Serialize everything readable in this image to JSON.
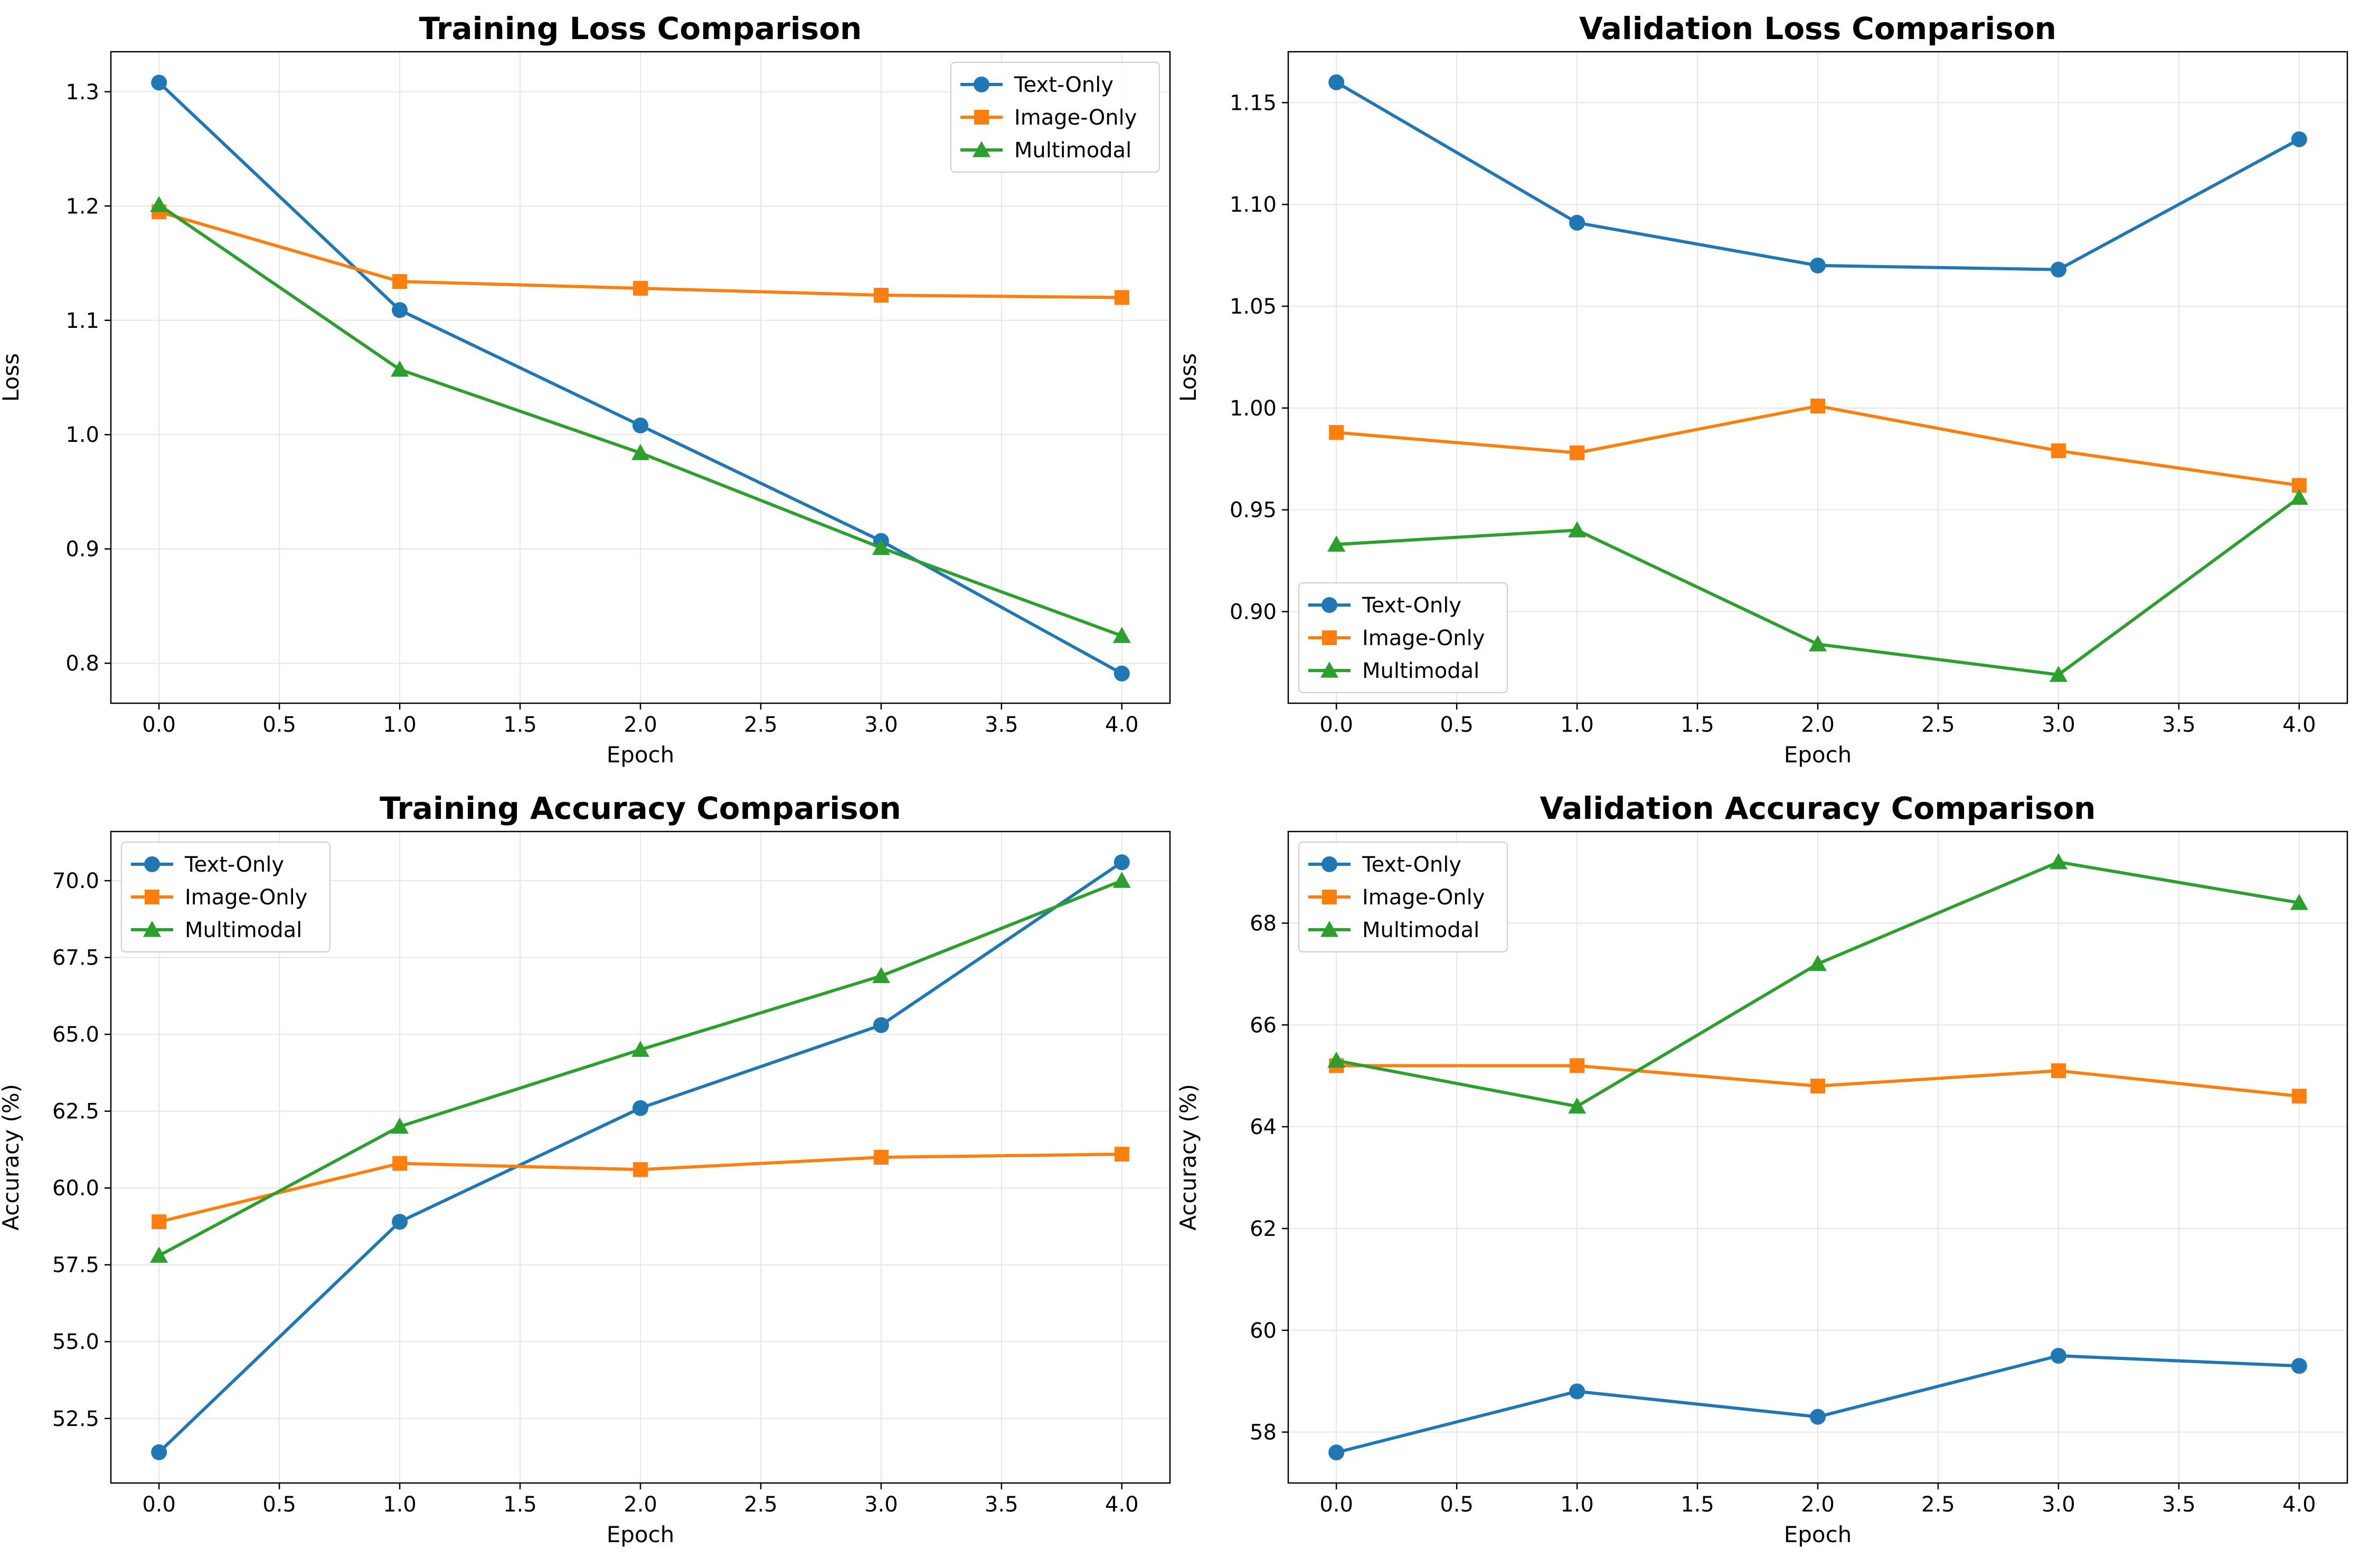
{
  "colors": {
    "text_only": "#1f77b4",
    "image_only": "#ff7f0e",
    "multimodal": "#2ca02c",
    "grid": "#e6e6e6",
    "axes": "#000000"
  },
  "chart_data": [
    {
      "type": "line",
      "title": "Training Loss Comparison",
      "xlabel": "Epoch",
      "ylabel": "Loss",
      "x": [
        0,
        1,
        2,
        3,
        4
      ],
      "xlim": [
        -0.2,
        4.2
      ],
      "ylim": [
        0.765,
        1.335
      ],
      "xticks": [
        0,
        0.5,
        1,
        1.5,
        2,
        2.5,
        3,
        3.5,
        4
      ],
      "xtick_labels": [
        "0.0",
        "0.5",
        "1.0",
        "1.5",
        "2.0",
        "2.5",
        "3.0",
        "3.5",
        "4.0"
      ],
      "yticks": [
        0.8,
        0.9,
        1.0,
        1.1,
        1.2,
        1.3
      ],
      "ytick_labels": [
        "0.8",
        "0.9",
        "1.0",
        "1.1",
        "1.2",
        "1.3"
      ],
      "grid": true,
      "legend_loc": "upper right",
      "series": [
        {
          "name": "Text-Only",
          "marker": "circle",
          "values": [
            1.308,
            1.109,
            1.008,
            0.907,
            0.791
          ]
        },
        {
          "name": "Image-Only",
          "marker": "square",
          "values": [
            1.195,
            1.134,
            1.128,
            1.122,
            1.12
          ]
        },
        {
          "name": "Multimodal",
          "marker": "triangle",
          "values": [
            1.201,
            1.057,
            0.984,
            0.901,
            0.824
          ]
        }
      ]
    },
    {
      "type": "line",
      "title": "Validation Loss Comparison",
      "xlabel": "Epoch",
      "ylabel": "Loss",
      "x": [
        0,
        1,
        2,
        3,
        4
      ],
      "xlim": [
        -0.2,
        4.2
      ],
      "ylim": [
        0.855,
        1.175
      ],
      "xticks": [
        0,
        0.5,
        1,
        1.5,
        2,
        2.5,
        3,
        3.5,
        4
      ],
      "xtick_labels": [
        "0.0",
        "0.5",
        "1.0",
        "1.5",
        "2.0",
        "2.5",
        "3.0",
        "3.5",
        "4.0"
      ],
      "yticks": [
        0.9,
        0.95,
        1.0,
        1.05,
        1.1,
        1.15
      ],
      "ytick_labels": [
        "0.90",
        "0.95",
        "1.00",
        "1.05",
        "1.10",
        "1.15"
      ],
      "grid": true,
      "legend_loc": "lower left",
      "series": [
        {
          "name": "Text-Only",
          "marker": "circle",
          "values": [
            1.16,
            1.091,
            1.07,
            1.068,
            1.132
          ]
        },
        {
          "name": "Image-Only",
          "marker": "square",
          "values": [
            0.988,
            0.978,
            1.001,
            0.979,
            0.962
          ]
        },
        {
          "name": "Multimodal",
          "marker": "triangle",
          "values": [
            0.933,
            0.94,
            0.884,
            0.869,
            0.956
          ]
        }
      ]
    },
    {
      "type": "line",
      "title": "Training Accuracy Comparison",
      "xlabel": "Epoch",
      "ylabel": "Accuracy (%)",
      "x": [
        0,
        1,
        2,
        3,
        4
      ],
      "xlim": [
        -0.2,
        4.2
      ],
      "ylim": [
        50.4,
        71.6
      ],
      "xticks": [
        0,
        0.5,
        1,
        1.5,
        2,
        2.5,
        3,
        3.5,
        4
      ],
      "xtick_labels": [
        "0.0",
        "0.5",
        "1.0",
        "1.5",
        "2.0",
        "2.5",
        "3.0",
        "3.5",
        "4.0"
      ],
      "yticks": [
        52.5,
        55.0,
        57.5,
        60.0,
        62.5,
        65.0,
        67.5,
        70.0
      ],
      "ytick_labels": [
        "52.5",
        "55.0",
        "57.5",
        "60.0",
        "62.5",
        "65.0",
        "67.5",
        "70.0"
      ],
      "grid": true,
      "legend_loc": "upper left",
      "series": [
        {
          "name": "Text-Only",
          "marker": "circle",
          "values": [
            51.4,
            58.9,
            62.6,
            65.3,
            70.6
          ]
        },
        {
          "name": "Image-Only",
          "marker": "square",
          "values": [
            58.9,
            60.8,
            60.6,
            61.0,
            61.1
          ]
        },
        {
          "name": "Multimodal",
          "marker": "triangle",
          "values": [
            57.8,
            62.0,
            64.5,
            66.9,
            70.0
          ]
        }
      ]
    },
    {
      "type": "line",
      "title": "Validation Accuracy Comparison",
      "xlabel": "Epoch",
      "ylabel": "Accuracy (%)",
      "x": [
        0,
        1,
        2,
        3,
        4
      ],
      "xlim": [
        -0.2,
        4.2
      ],
      "ylim": [
        57.0,
        69.8
      ],
      "xticks": [
        0,
        0.5,
        1,
        1.5,
        2,
        2.5,
        3,
        3.5,
        4
      ],
      "xtick_labels": [
        "0.0",
        "0.5",
        "1.0",
        "1.5",
        "2.0",
        "2.5",
        "3.0",
        "3.5",
        "4.0"
      ],
      "yticks": [
        58,
        60,
        62,
        64,
        66,
        68
      ],
      "ytick_labels": [
        "58",
        "60",
        "62",
        "64",
        "66",
        "68"
      ],
      "grid": true,
      "legend_loc": "upper left",
      "series": [
        {
          "name": "Text-Only",
          "marker": "circle",
          "values": [
            57.6,
            58.8,
            58.3,
            59.5,
            59.3
          ]
        },
        {
          "name": "Image-Only",
          "marker": "square",
          "values": [
            65.2,
            65.2,
            64.8,
            65.1,
            64.6
          ]
        },
        {
          "name": "Multimodal",
          "marker": "triangle",
          "values": [
            65.3,
            64.4,
            67.2,
            69.2,
            68.4
          ]
        }
      ]
    }
  ]
}
